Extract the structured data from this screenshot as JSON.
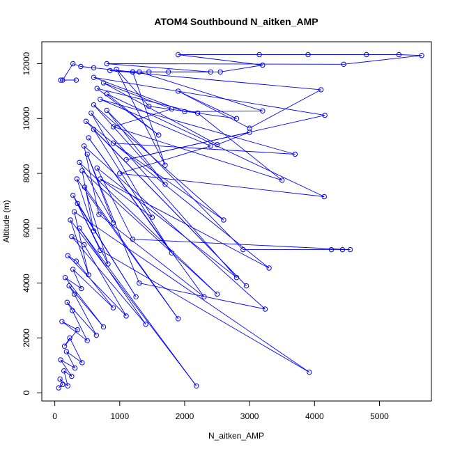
{
  "chart_data": {
    "type": "scatter",
    "title": "ATOM4 Southbound N_aitken_AMP",
    "xlabel": "N_aitken_AMP",
    "ylabel": "Altitude (m)",
    "xlim": [
      -200,
      5800
    ],
    "ylim": [
      -300,
      12800
    ],
    "x_ticks": [
      0,
      1000,
      2000,
      3000,
      4000,
      5000
    ],
    "y_ticks": [
      0,
      2000,
      4000,
      6000,
      8000,
      10000,
      12000
    ],
    "grid": false,
    "legend": "none",
    "connected": true,
    "series_color": "#0000ff",
    "series": [
      {
        "x": [
          60,
          120,
          80,
          200,
          140,
          260,
          90,
          310,
          180,
          420,
          230,
          150,
          350,
          110,
          500,
          270,
          190,
          640,
          300,
          220,
          750,
          160,
          410,
          280,
          900,
          330,
          200,
          1100,
          450,
          260,
          1400,
          380,
          2180,
          240,
          520,
          300,
          3920,
          700,
          350,
          1250,
          280,
          820,
          460,
          1900,
          340,
          600,
          420,
          2500,
          380,
          900,
          500,
          1300,
          3240,
          450,
          680,
          2300,
          520,
          1800,
          600,
          2950,
          480,
          3300,
          700,
          1500,
          560,
          2800,
          650,
          1200,
          4550,
          4430,
          4260,
          2900,
          800,
          1700,
          600,
          2600,
          900,
          3700,
          700,
          2400,
          1000,
          4150,
          800,
          1600,
          650,
          2200,
          3500,
          900,
          1800,
          750,
          2500,
          3000,
          1100,
          4160,
          600,
          2000,
          3200,
          1300,
          850,
          4100,
          3000,
          1900,
          2800,
          1450,
          950,
          1700,
          1200,
          2400,
          800,
          4450,
          5650,
          5300,
          4800,
          3900,
          3150,
          1900,
          3200,
          2550,
          1750,
          1450,
          1200,
          600,
          400,
          280,
          120,
          330,
          90
        ],
        "y": [
          180,
          300,
          500,
          250,
          800,
          600,
          1200,
          900,
          1500,
          1100,
          2000,
          1700,
          2300,
          2600,
          1900,
          3000,
          3300,
          2100,
          3600,
          3900,
          2400,
          4200,
          3800,
          4500,
          3100,
          4800,
          5000,
          2800,
          5400,
          5700,
          2500,
          6000,
          250,
          6300,
          4300,
          6600,
          750,
          5200,
          6900,
          3500,
          7200,
          4700,
          7500,
          2700,
          7800,
          5900,
          8100,
          3600,
          8400,
          6200,
          8700,
          4000,
          3050,
          9000,
          6500,
          3500,
          9300,
          5100,
          9600,
          3900,
          9900,
          4550,
          7800,
          6400,
          10200,
          4200,
          8200,
          5600,
          5220,
          5220,
          5220,
          5220,
          10300,
          7600,
          10500,
          6300,
          9100,
          8700,
          10700,
          9000,
          8000,
          7150,
          10900,
          9400,
          11100,
          10200,
          7750,
          9700,
          10350,
          11300,
          9050,
          9500,
          8500,
          10120,
          11500,
          10250,
          10280,
          11700,
          11750,
          11050,
          9650,
          11000,
          10000,
          10450,
          11800,
          8300,
          11700,
          11700,
          12000,
          11980,
          12300,
          12330,
          12330,
          12330,
          12330,
          12330,
          11950,
          11700,
          11700,
          11700,
          11700,
          11850,
          11900,
          12000,
          11400,
          11400,
          11400
        ]
      }
    ]
  }
}
